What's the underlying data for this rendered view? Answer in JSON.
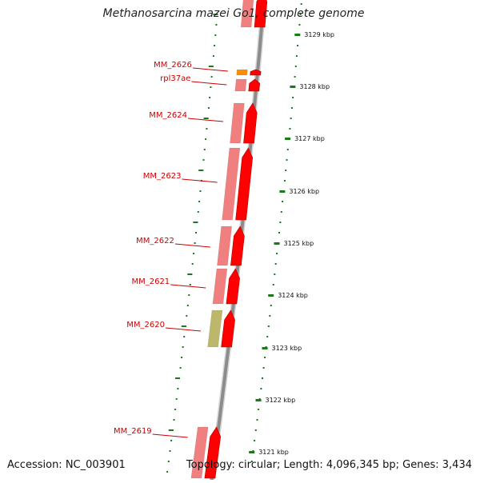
{
  "title": "Methanosarcina mazei Go1, complete genome",
  "accession": "Accession: NC_003901",
  "footer_info": "Topology: circular; Length: 4,096,345 bp; Genes: 3,434",
  "colors": {
    "backbone": "#8c8c8c",
    "tick": "#1a7a1a",
    "gene_label": "#cc0000",
    "cds": "#ff0000",
    "gene": "#f08080",
    "rna": "#ff8c00",
    "pseudo": "#bdb76b",
    "scale_label": "#111111"
  },
  "scale_ticks": [
    {
      "label": "3129 kbp"
    },
    {
      "label": "3128 kbp"
    },
    {
      "label": "3127 kbp"
    },
    {
      "label": "3126 kbp"
    },
    {
      "label": "3125 kbp"
    },
    {
      "label": "3124 kbp"
    },
    {
      "label": "3123 kbp"
    },
    {
      "label": "3122 kbp"
    },
    {
      "label": "3121 kbp"
    }
  ],
  "genes": [
    {
      "label": "MM_2626",
      "kind": "rna"
    },
    {
      "label": "rpl37ae",
      "kind": "cds"
    },
    {
      "label": "MM_2624",
      "kind": "cds"
    },
    {
      "label": "MM_2623",
      "kind": "cds"
    },
    {
      "label": "MM_2622",
      "kind": "cds"
    },
    {
      "label": "MM_2621",
      "kind": "cds"
    },
    {
      "label": "MM_2620",
      "kind": "pseudo"
    },
    {
      "label": "MM_2619",
      "kind": "cds"
    }
  ]
}
